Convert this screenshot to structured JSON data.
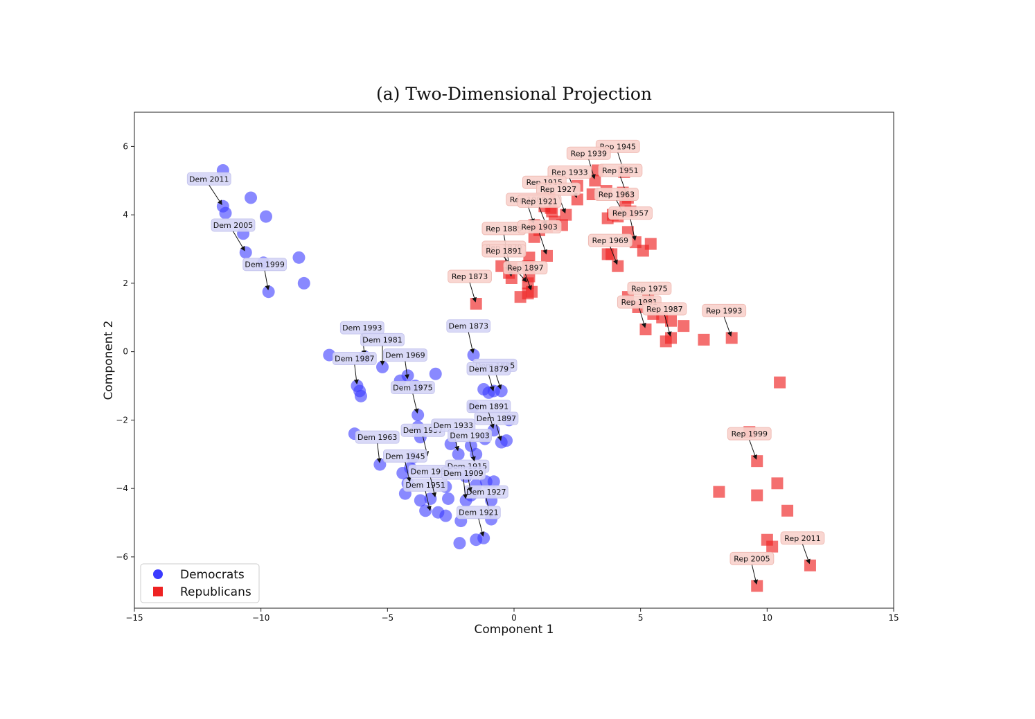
{
  "chart_data": {
    "type": "scatter",
    "title": "(a) Two-Dimensional Projection",
    "xlabel": "Component 1",
    "ylabel": "Component 2",
    "xlim": [
      -15,
      15
    ],
    "ylim": [
      -7.5,
      7
    ],
    "xticks": [
      -15,
      -10,
      -5,
      0,
      5,
      10,
      15
    ],
    "yticks": [
      -6,
      -4,
      -2,
      0,
      2,
      4,
      6
    ],
    "grid": false,
    "legend": {
      "placement": "bottom-left",
      "entries": [
        "Democrats",
        "Republicans"
      ]
    },
    "series": [
      {
        "name": "Democrats",
        "marker": "circle",
        "color": "#3a3aff",
        "points": [
          [
            -11.5,
            5.3
          ],
          [
            -11.5,
            4.25
          ],
          [
            -11.4,
            4.05
          ],
          [
            -10.4,
            4.5
          ],
          [
            -9.8,
            3.95
          ],
          [
            -10.7,
            3.45
          ],
          [
            -10.6,
            2.9
          ],
          [
            -9.9,
            2.6
          ],
          [
            -9.7,
            1.75
          ],
          [
            -8.5,
            2.75
          ],
          [
            -8.3,
            2.0
          ],
          [
            -7.3,
            -0.1
          ],
          [
            -6.2,
            -1.0
          ],
          [
            -6.1,
            -1.15
          ],
          [
            -6.05,
            -1.3
          ],
          [
            -5.9,
            -0.15
          ],
          [
            -5.2,
            -0.45
          ],
          [
            -4.5,
            -0.85
          ],
          [
            -4.2,
            -0.7
          ],
          [
            -3.9,
            -1.0
          ],
          [
            -3.1,
            -0.65
          ],
          [
            -3.8,
            -1.85
          ],
          [
            -3.8,
            -2.2
          ],
          [
            -3.7,
            -2.5
          ],
          [
            -6.3,
            -2.4
          ],
          [
            -5.3,
            -3.3
          ],
          [
            -4.4,
            -3.55
          ],
          [
            -4.0,
            -3.1
          ],
          [
            -4.1,
            -3.4
          ],
          [
            -4.2,
            -3.85
          ],
          [
            -4.3,
            -4.15
          ],
          [
            -3.7,
            -4.35
          ],
          [
            -3.5,
            -4.65
          ],
          [
            -3.3,
            -4.3
          ],
          [
            -3.0,
            -4.7
          ],
          [
            -2.7,
            -4.8
          ],
          [
            -2.7,
            -3.95
          ],
          [
            -2.6,
            -4.3
          ],
          [
            -2.1,
            -4.95
          ],
          [
            -2.15,
            -5.6
          ],
          [
            -1.5,
            -5.5
          ],
          [
            -1.2,
            -5.45
          ],
          [
            -2.5,
            -2.7
          ],
          [
            -2.2,
            -3.0
          ],
          [
            -1.7,
            -2.75
          ],
          [
            -1.5,
            -3.0
          ],
          [
            -1.9,
            -3.65
          ],
          [
            -1.7,
            -4.2
          ],
          [
            -1.5,
            -3.9
          ],
          [
            -1.9,
            -4.35
          ],
          [
            -1.1,
            -3.8
          ],
          [
            -0.8,
            -3.8
          ],
          [
            -0.9,
            -4.35
          ],
          [
            -0.9,
            -4.9
          ],
          [
            -1.15,
            -2.55
          ],
          [
            -0.8,
            -2.3
          ],
          [
            -0.5,
            -2.65
          ],
          [
            -0.3,
            -2.6
          ],
          [
            -0.2,
            -2.0
          ],
          [
            -1.6,
            -0.1
          ],
          [
            -1.2,
            -1.1
          ],
          [
            -1.0,
            -1.2
          ],
          [
            -0.8,
            -1.15
          ],
          [
            -0.5,
            -1.15
          ],
          [
            -1.6,
            -1.6
          ]
        ],
        "labels": [
          "Dem 2011",
          "Dem 2005",
          "Dem 1999",
          "Dem 1993",
          "Dem 1987",
          "Dem 1981",
          "Dem 1975",
          "Dem 1969",
          "Dem 1963",
          "Dem 1957",
          "Dem 1951",
          "Dem 1945",
          "Dem 1939",
          "Dem 1933",
          "Dem 1927",
          "Dem 1921",
          "Dem 1915",
          "Dem 1909",
          "Dem 1903",
          "Dem 1897",
          "Dem 1891",
          "Dem 1885",
          "Dem 1879",
          "Dem 1873"
        ]
      },
      {
        "name": "Republicans",
        "marker": "square",
        "color": "#ee2222",
        "points": [
          [
            -1.5,
            1.4
          ],
          [
            0.25,
            1.6
          ],
          [
            0.55,
            1.7
          ],
          [
            0.7,
            1.75
          ],
          [
            0.55,
            2.0
          ],
          [
            0.6,
            2.2
          ],
          [
            0.55,
            2.5
          ],
          [
            0.6,
            2.75
          ],
          [
            -0.1,
            2.45
          ],
          [
            -0.5,
            2.5
          ],
          [
            -0.2,
            2.3
          ],
          [
            -0.1,
            2.15
          ],
          [
            1.3,
            2.8
          ],
          [
            0.8,
            3.35
          ],
          [
            0.8,
            3.7
          ],
          [
            1.0,
            3.55
          ],
          [
            1.3,
            3.65
          ],
          [
            1.6,
            3.8
          ],
          [
            1.9,
            3.7
          ],
          [
            2.05,
            4.0
          ],
          [
            1.5,
            4.1
          ],
          [
            1.2,
            4.25
          ],
          [
            1.4,
            4.5
          ],
          [
            1.45,
            4.2
          ],
          [
            2.5,
            4.45
          ],
          [
            2.5,
            4.85
          ],
          [
            3.1,
            4.6
          ],
          [
            3.2,
            5.0
          ],
          [
            3.3,
            5.3
          ],
          [
            3.65,
            4.7
          ],
          [
            3.7,
            3.9
          ],
          [
            3.9,
            4.0
          ],
          [
            4.1,
            3.95
          ],
          [
            4.4,
            4.3
          ],
          [
            4.5,
            4.5
          ],
          [
            4.6,
            4.1
          ],
          [
            4.35,
            5.25
          ],
          [
            4.3,
            4.65
          ],
          [
            4.5,
            3.5
          ],
          [
            4.8,
            3.2
          ],
          [
            5.4,
            3.15
          ],
          [
            5.1,
            2.95
          ],
          [
            3.85,
            2.85
          ],
          [
            4.1,
            2.5
          ],
          [
            3.7,
            2.85
          ],
          [
            4.5,
            1.6
          ],
          [
            4.9,
            1.3
          ],
          [
            5.3,
            1.5
          ],
          [
            5.5,
            1.1
          ],
          [
            5.85,
            1.0
          ],
          [
            6.2,
            0.9
          ],
          [
            6.7,
            0.75
          ],
          [
            5.2,
            0.65
          ],
          [
            6.2,
            0.4
          ],
          [
            6.0,
            0.3
          ],
          [
            7.5,
            0.35
          ],
          [
            8.6,
            0.4
          ],
          [
            10.5,
            -0.9
          ],
          [
            9.3,
            -2.35
          ],
          [
            9.6,
            -3.2
          ],
          [
            8.1,
            -4.1
          ],
          [
            9.6,
            -4.2
          ],
          [
            10.4,
            -3.85
          ],
          [
            10.8,
            -4.65
          ],
          [
            10.0,
            -5.5
          ],
          [
            10.2,
            -5.7
          ],
          [
            9.6,
            -6.85
          ],
          [
            11.7,
            -6.25
          ]
        ],
        "labels": [
          "Rep 1945",
          "Rep 1939",
          "Rep 1951",
          "Rep 1933",
          "Rep 1915",
          "Rep 1927",
          "Rep 1963",
          "Rep 1909",
          "Rep 1921",
          "Rep 1957",
          "Rep 1885",
          "Rep 1903",
          "Rep 1969",
          "Rep 1879",
          "Rep 1891",
          "Rep 1897",
          "Rep 1873",
          "Rep 1975",
          "Rep 1981",
          "Rep 1987",
          "Rep 1993",
          "Rep 1999",
          "Rep 2011",
          "Rep 2005"
        ]
      }
    ],
    "annotations": [
      {
        "text": "Dem 2011",
        "tx": -12.05,
        "ty": 5.05,
        "px": -11.5,
        "py": 4.25,
        "series": "Democrats"
      },
      {
        "text": "Dem 2005",
        "tx": -11.1,
        "ty": 3.7,
        "px": -10.6,
        "py": 2.9,
        "series": "Democrats"
      },
      {
        "text": "Dem 1999",
        "tx": -9.85,
        "ty": 2.55,
        "px": -9.7,
        "py": 1.75,
        "series": "Democrats"
      },
      {
        "text": "Dem 1993",
        "tx": -6.0,
        "ty": 0.7,
        "px": -5.9,
        "py": -0.15,
        "series": "Democrats"
      },
      {
        "text": "Dem 1987",
        "tx": -6.3,
        "ty": -0.2,
        "px": -6.2,
        "py": -1.0,
        "series": "Democrats"
      },
      {
        "text": "Dem 1981",
        "tx": -5.2,
        "ty": 0.35,
        "px": -5.2,
        "py": -0.45,
        "series": "Democrats"
      },
      {
        "text": "Dem 1975",
        "tx": -4.0,
        "ty": -1.05,
        "px": -3.8,
        "py": -1.85,
        "series": "Democrats"
      },
      {
        "text": "Dem 1969",
        "tx": -4.3,
        "ty": -0.1,
        "px": -4.2,
        "py": -0.85,
        "series": "Democrats"
      },
      {
        "text": "Dem 1963",
        "tx": -5.4,
        "ty": -2.5,
        "px": -5.3,
        "py": -3.3,
        "series": "Democrats"
      },
      {
        "text": "Dem 1957",
        "tx": -3.6,
        "ty": -2.3,
        "px": -3.4,
        "py": -3.1,
        "series": "Democrats"
      },
      {
        "text": "Dem 1951",
        "tx": -3.5,
        "ty": -3.9,
        "px": -3.3,
        "py": -4.7,
        "series": "Democrats"
      },
      {
        "text": "Dem 1945",
        "tx": -4.3,
        "ty": -3.05,
        "px": -4.1,
        "py": -3.85,
        "series": "Democrats"
      },
      {
        "text": "Dem 1939",
        "tx": -3.3,
        "ty": -3.5,
        "px": -3.1,
        "py": -4.3,
        "series": "Democrats"
      },
      {
        "text": "Dem 1933",
        "tx": -2.4,
        "ty": -2.15,
        "px": -2.2,
        "py": -2.95,
        "series": "Democrats"
      },
      {
        "text": "Dem 1927",
        "tx": -1.1,
        "ty": -4.1,
        "px": -0.9,
        "py": -4.9,
        "series": "Democrats"
      },
      {
        "text": "Dem 1921",
        "tx": -1.4,
        "ty": -4.7,
        "px": -1.2,
        "py": -5.45,
        "series": "Democrats"
      },
      {
        "text": "Dem 1915",
        "tx": -1.85,
        "ty": -3.35,
        "px": -1.7,
        "py": -4.15,
        "series": "Democrats"
      },
      {
        "text": "Dem 1909",
        "tx": -2.0,
        "ty": -3.55,
        "px": -1.9,
        "py": -4.35,
        "series": "Democrats"
      },
      {
        "text": "Dem 1903",
        "tx": -1.75,
        "ty": -2.45,
        "px": -1.55,
        "py": -3.25,
        "series": "Democrats"
      },
      {
        "text": "Dem 1897",
        "tx": -0.7,
        "ty": -1.95,
        "px": -0.5,
        "py": -2.65,
        "series": "Democrats"
      },
      {
        "text": "Dem 1891",
        "tx": -1.0,
        "ty": -1.6,
        "px": -0.8,
        "py": -2.3,
        "series": "Democrats"
      },
      {
        "text": "Dem 1885",
        "tx": -0.75,
        "ty": -0.4,
        "px": -0.5,
        "py": -1.15,
        "series": "Democrats"
      },
      {
        "text": "Dem 1879",
        "tx": -1.0,
        "ty": -0.5,
        "px": -0.8,
        "py": -1.2,
        "series": "Democrats"
      },
      {
        "text": "Dem 1873",
        "tx": -1.8,
        "ty": 0.75,
        "px": -1.6,
        "py": -0.1,
        "series": "Democrats"
      },
      {
        "text": "Rep 1945",
        "tx": 4.1,
        "ty": 6.0,
        "px": 4.35,
        "py": 5.25,
        "series": "Republicans"
      },
      {
        "text": "Rep 1939",
        "tx": 2.95,
        "ty": 5.8,
        "px": 3.2,
        "py": 5.0,
        "series": "Republicans"
      },
      {
        "text": "Rep 1951",
        "tx": 4.2,
        "ty": 5.3,
        "px": 4.5,
        "py": 4.5,
        "series": "Republicans"
      },
      {
        "text": "Rep 1933",
        "tx": 2.2,
        "ty": 5.25,
        "px": 2.5,
        "py": 4.45,
        "series": "Republicans"
      },
      {
        "text": "Rep 1915",
        "tx": 1.2,
        "ty": 4.95,
        "px": 1.45,
        "py": 4.2,
        "series": "Republicans"
      },
      {
        "text": "Rep 1927",
        "tx": 1.75,
        "ty": 4.75,
        "px": 2.05,
        "py": 4.0,
        "series": "Republicans"
      },
      {
        "text": "Rep 1963",
        "tx": 4.05,
        "ty": 4.6,
        "px": 4.4,
        "py": 3.95,
        "series": "Republicans"
      },
      {
        "text": "Rep 1909",
        "tx": 0.55,
        "ty": 4.45,
        "px": 0.8,
        "py": 3.7,
        "series": "Republicans"
      },
      {
        "text": "Rep 1921",
        "tx": 1.0,
        "ty": 4.4,
        "px": 1.3,
        "py": 3.65,
        "series": "Republicans"
      },
      {
        "text": "Rep 1957",
        "tx": 4.6,
        "ty": 4.05,
        "px": 4.8,
        "py": 3.2,
        "series": "Republicans"
      },
      {
        "text": "Rep 1885",
        "tx": -0.4,
        "ty": 3.6,
        "px": -0.1,
        "py": 2.15,
        "series": "Republicans"
      },
      {
        "text": "Rep 1903",
        "tx": 1.0,
        "ty": 3.65,
        "px": 1.3,
        "py": 2.8,
        "series": "Republicans"
      },
      {
        "text": "Rep 1969",
        "tx": 3.8,
        "ty": 3.25,
        "px": 4.1,
        "py": 2.5,
        "series": "Republicans"
      },
      {
        "text": "Rep 1879",
        "tx": -0.4,
        "ty": 3.05,
        "px": -0.2,
        "py": 2.3,
        "series": "Republicans"
      },
      {
        "text": "Rep 1891",
        "tx": -0.4,
        "ty": 2.95,
        "px": 0.55,
        "py": 2.0,
        "series": "Republicans"
      },
      {
        "text": "Rep 1897",
        "tx": 0.45,
        "ty": 2.45,
        "px": 0.7,
        "py": 1.75,
        "series": "Republicans"
      },
      {
        "text": "Rep 1873",
        "tx": -1.75,
        "ty": 2.2,
        "px": -1.5,
        "py": 1.4,
        "series": "Republicans"
      },
      {
        "text": "Rep 1975",
        "tx": 5.35,
        "ty": 1.85,
        "px": 5.5,
        "py": 1.1,
        "series": "Republicans"
      },
      {
        "text": "Rep 1981",
        "tx": 4.95,
        "ty": 1.45,
        "px": 5.2,
        "py": 0.65,
        "series": "Republicans"
      },
      {
        "text": "Rep 1987",
        "tx": 5.95,
        "ty": 1.25,
        "px": 6.2,
        "py": 0.4,
        "series": "Republicans"
      },
      {
        "text": "Rep 1993",
        "tx": 8.3,
        "ty": 1.2,
        "px": 8.6,
        "py": 0.4,
        "series": "Republicans"
      },
      {
        "text": "Rep 1999",
        "tx": 9.3,
        "ty": -2.4,
        "px": 9.6,
        "py": -3.2,
        "series": "Republicans"
      },
      {
        "text": "Rep 2011",
        "tx": 11.4,
        "ty": -5.45,
        "px": 11.7,
        "py": -6.25,
        "series": "Republicans"
      },
      {
        "text": "Rep 2005",
        "tx": 9.4,
        "ty": -6.05,
        "px": 9.6,
        "py": -6.85,
        "series": "Republicans"
      }
    ]
  }
}
